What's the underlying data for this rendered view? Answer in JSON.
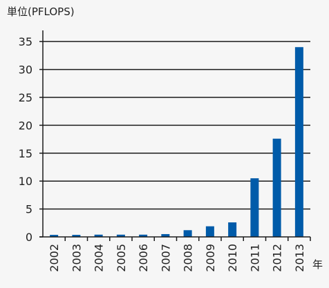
{
  "chart_data": {
    "type": "bar",
    "unit_label": "単位(PFLOPS)",
    "xlabel": "年",
    "ylabel": "",
    "title": "",
    "categories": [
      "2002",
      "2003",
      "2004",
      "2005",
      "2006",
      "2007",
      "2008",
      "2009",
      "2010",
      "2011",
      "2012",
      "2013"
    ],
    "values": [
      0.36,
      0.36,
      0.4,
      0.4,
      0.4,
      0.5,
      1.2,
      1.9,
      2.6,
      10.5,
      17.6,
      34.0
    ],
    "ylim": [
      0,
      37
    ],
    "yticks": [
      0,
      5,
      10,
      15,
      20,
      25,
      30,
      35
    ],
    "ytick_labels": [
      "0",
      "5",
      "10",
      "15",
      "20",
      "25",
      "30",
      "35"
    ],
    "grid": true,
    "legend": "none",
    "bar_color": "#005ba9",
    "axis_color": "#1a1a1a",
    "background_color": "#f6f6f6"
  }
}
